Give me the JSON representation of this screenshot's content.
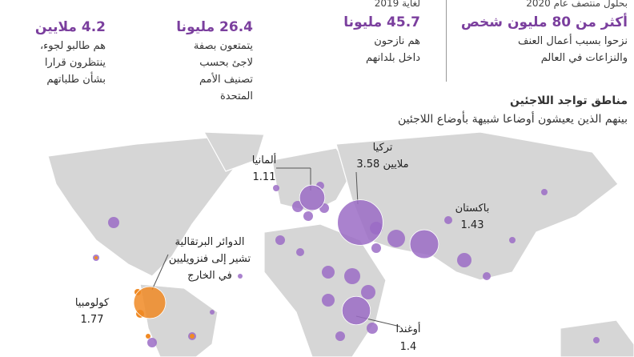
{
  "stats": [
    {
      "header": "بحلول منتصف عام 2020",
      "figure": "أكثر من 80 مليون شخص",
      "lines": [
        "نزحوا بسبب أعمال العنف",
        "والنزاعات في العالم"
      ]
    },
    {
      "header": "لغاية 2019",
      "figure": "45.7 مليونا",
      "lines": [
        "هم نازحون",
        "داخل بلدانهم"
      ]
    },
    {
      "figure": "26.4 مليونا",
      "lines": [
        "يتمتعون بصفة",
        "لاجئ بحسب",
        "تصنيف الأمم",
        "المتحدة"
      ]
    },
    {
      "figure": "4.2 ملايين",
      "lines": [
        "هم طالبو لجوء،",
        "ينتظرون قرارا",
        "بشأن طلباتهم"
      ]
    }
  ],
  "map": {
    "title": "مناطق تواجد اللاجئين",
    "subtitle": "بينهم الذين يعيشون أوضاعا شبيهة بأوضاع اللاجئين",
    "annotation": [
      "الدوائر البرتقالية",
      "تشير إلى فنزويليين",
      "في الخارج"
    ],
    "bubbles": [
      {
        "name": "تركيا",
        "value": 3.58,
        "value_label": "3.58 ملايين",
        "color": "#9b6cc6"
      },
      {
        "name": "ألمانيا",
        "value": 1.11,
        "color": "#9b6cc6"
      },
      {
        "name": "باكستان",
        "value": 1.43,
        "color": "#9b6cc6"
      },
      {
        "name": "كولومبيا",
        "value": 1.77,
        "color": "#f08a24"
      },
      {
        "name": "أوغندا",
        "value": 1.4,
        "color": "#9b6cc6"
      }
    ]
  }
}
